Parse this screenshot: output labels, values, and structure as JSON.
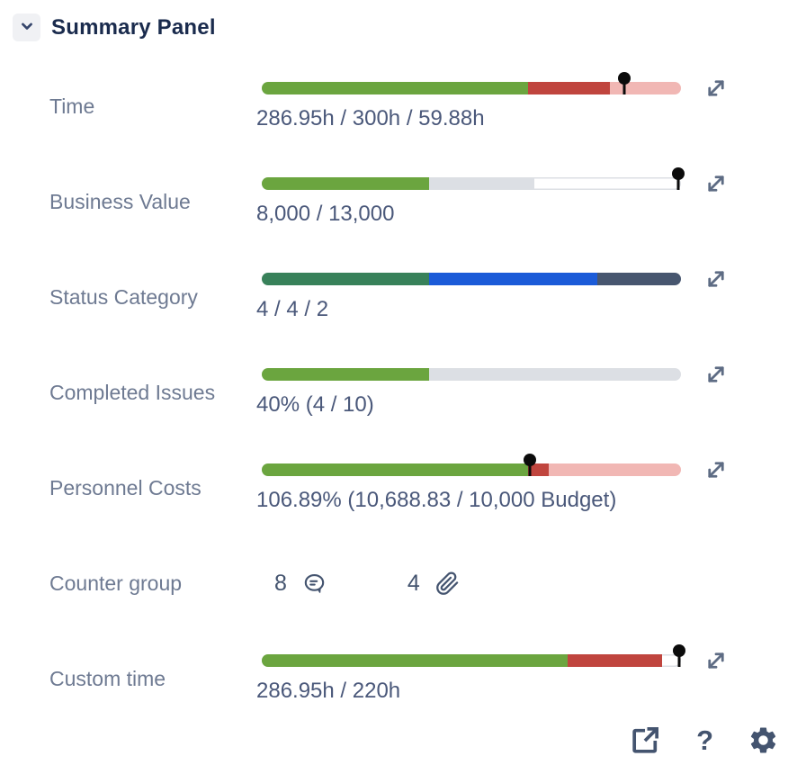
{
  "header": {
    "title": "Summary Panel"
  },
  "rows": [
    {
      "id": "time",
      "label": "Time",
      "type": "bar",
      "value": "286.95h / 300h / 59.88h",
      "track_border": false,
      "marker_pct": 86.5,
      "segments": [
        {
          "name": "spent",
          "color": "#6BA53F",
          "pct": 63.5
        },
        {
          "name": "over",
          "color": "#C0453E",
          "pct": 19.5
        },
        {
          "name": "remaining",
          "color": "#F1B7B4",
          "pct": 17
        }
      ]
    },
    {
      "id": "business-value",
      "label": "Business Value",
      "type": "bar",
      "value": "8,000 / 13,000",
      "track_border": true,
      "marker_pct": 99.3,
      "segments": [
        {
          "name": "achieved",
          "color": "#6BA53F",
          "pct": 40
        },
        {
          "name": "planned",
          "color": "#DCDFE4",
          "pct": 25
        }
      ]
    },
    {
      "id": "status-category",
      "label": "Status Category",
      "type": "bar",
      "value": "4 / 4 / 2",
      "track_border": false,
      "marker_pct": null,
      "segments": [
        {
          "name": "done",
          "color": "#38815A",
          "pct": 40
        },
        {
          "name": "in-progress",
          "color": "#1B5BD8",
          "pct": 40
        },
        {
          "name": "to-do",
          "color": "#47566F",
          "pct": 20
        }
      ]
    },
    {
      "id": "completed-issues",
      "label": "Completed Issues",
      "type": "bar",
      "value": "40% (4 / 10)",
      "track_border": false,
      "marker_pct": null,
      "segments": [
        {
          "name": "completed",
          "color": "#6BA53F",
          "pct": 40
        },
        {
          "name": "remaining",
          "color": "#DCDFE4",
          "pct": 60
        }
      ]
    },
    {
      "id": "personnel-costs",
      "label": "Personnel Costs",
      "type": "bar",
      "value": "106.89% (10,688.83 / 10,000 Budget)",
      "track_border": false,
      "marker_pct": 64,
      "segments": [
        {
          "name": "spent",
          "color": "#6BA53F",
          "pct": 63.5
        },
        {
          "name": "over",
          "color": "#C0453E",
          "pct": 5
        },
        {
          "name": "remaining",
          "color": "#F1B7B4",
          "pct": 31.5
        }
      ]
    },
    {
      "id": "counter-group",
      "label": "Counter group",
      "type": "counters",
      "counters": [
        {
          "value": "8",
          "icon": "comment-icon"
        },
        {
          "value": "4",
          "icon": "paperclip-icon"
        }
      ]
    },
    {
      "id": "custom-time",
      "label": "Custom time",
      "type": "bar",
      "value": "286.95h / 220h",
      "track_border": true,
      "marker_pct": 99.5,
      "segments": [
        {
          "name": "spent",
          "color": "#6BA53F",
          "pct": 73
        },
        {
          "name": "over",
          "color": "#C0453E",
          "pct": 22.5
        }
      ]
    }
  ],
  "footer": {
    "help_glyph": "?",
    "icons": [
      {
        "name": "open-in-new-icon"
      },
      {
        "name": "help-icon"
      },
      {
        "name": "settings-gear-icon"
      }
    ]
  }
}
